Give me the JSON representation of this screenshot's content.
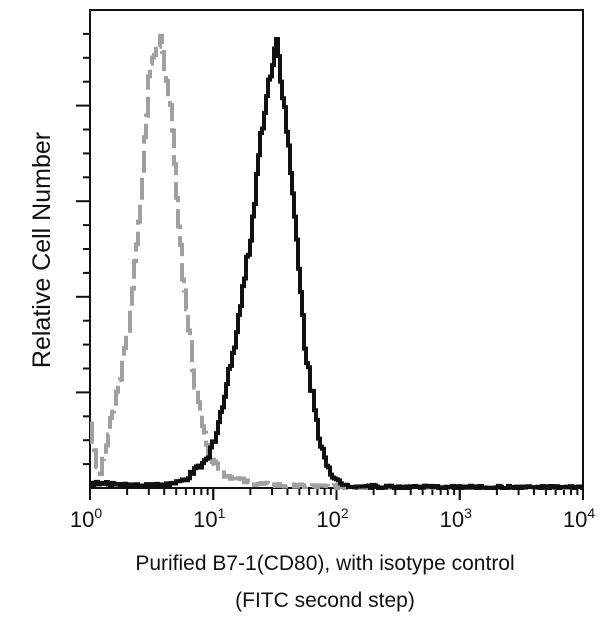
{
  "chart_data": {
    "type": "line",
    "title": "",
    "xlabel": "Purified B7-1(CD80), with isotype control",
    "xlabel2": "(FITC second step)",
    "ylabel": "Relative Cell Number",
    "x_scale": "log",
    "xlim": [
      1,
      10000
    ],
    "ylim": [
      0,
      1
    ],
    "x_ticks": [
      {
        "base": "10",
        "exp": "0",
        "value": 1
      },
      {
        "base": "10",
        "exp": "1",
        "value": 10
      },
      {
        "base": "10",
        "exp": "2",
        "value": 100
      },
      {
        "base": "10",
        "exp": "3",
        "value": 1000
      },
      {
        "base": "10",
        "exp": "4",
        "value": 10000
      }
    ],
    "grid": false,
    "series": [
      {
        "style": "dashed",
        "color": "#a0a0a0",
        "x": [
          1,
          1.1,
          1.2,
          1.5,
          2,
          2.5,
          3,
          3.7,
          4.5,
          5.5,
          7,
          9,
          12,
          20,
          40,
          100,
          1000
        ],
        "y": [
          0.14,
          0.05,
          0.03,
          0.15,
          0.32,
          0.57,
          0.88,
          0.95,
          0.78,
          0.46,
          0.22,
          0.06,
          0.03,
          0.01,
          0.005,
          0.003,
          0
        ]
      },
      {
        "style": "solid",
        "color": "#111111",
        "x": [
          1,
          3,
          5,
          6,
          9,
          12,
          15,
          20,
          24,
          28,
          32,
          38,
          45,
          55,
          70,
          90,
          120,
          300,
          10000
        ],
        "y": [
          0.01,
          0.005,
          0.01,
          0.02,
          0.06,
          0.18,
          0.32,
          0.53,
          0.74,
          0.85,
          0.945,
          0.78,
          0.57,
          0.29,
          0.12,
          0.02,
          0.005,
          0.002,
          0.001
        ]
      }
    ]
  }
}
